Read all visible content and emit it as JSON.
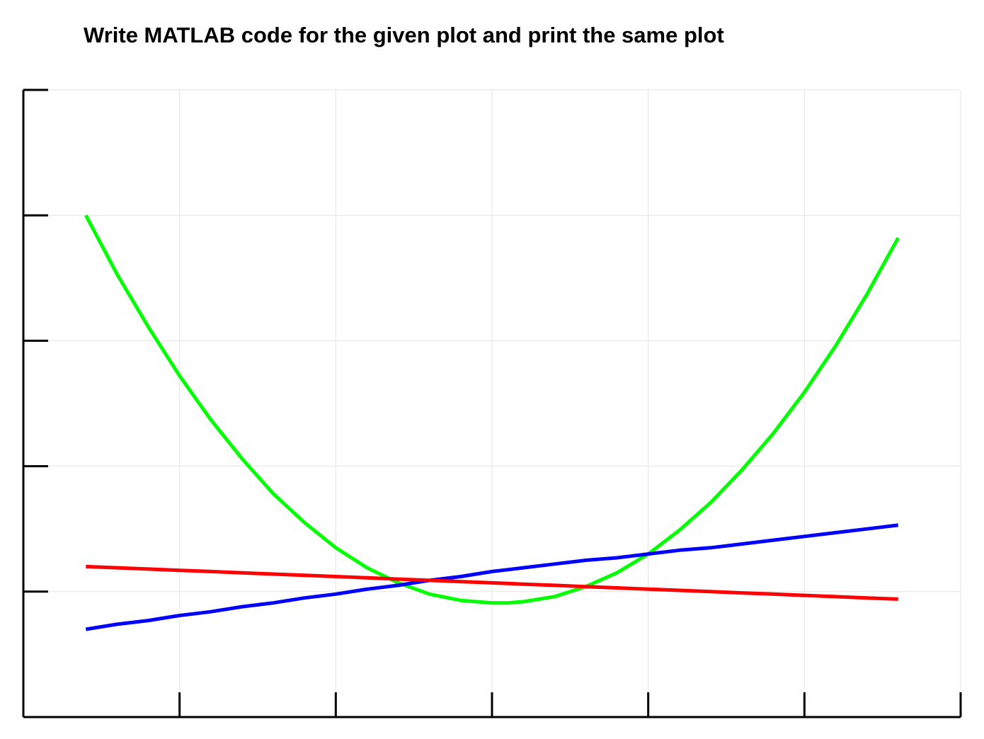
{
  "header": {
    "title": "Write MATLAB code for the given plot and print the same plot"
  },
  "chart_data": {
    "type": "line",
    "title": "",
    "xlabel": "",
    "ylabel": "",
    "xlim": [
      0,
      6
    ],
    "ylim": [
      0,
      5
    ],
    "xticks": [
      0,
      1,
      2,
      3,
      4,
      5,
      6
    ],
    "yticks": [
      0,
      1,
      2,
      3,
      4,
      5
    ],
    "grid": true,
    "tick_labels_shown": false,
    "x": [
      0.4,
      0.6,
      0.8,
      1.0,
      1.2,
      1.4,
      1.6,
      1.8,
      2.0,
      2.2,
      2.4,
      2.6,
      2.8,
      3.0,
      3.1,
      3.2,
      3.4,
      3.6,
      3.8,
      4.0,
      4.2,
      4.4,
      4.6,
      4.8,
      5.0,
      5.2,
      5.4,
      5.6
    ],
    "series": [
      {
        "color": "#00ff00",
        "values": [
          4.0,
          3.53,
          3.11,
          2.72,
          2.37,
          2.06,
          1.78,
          1.55,
          1.35,
          1.19,
          1.07,
          0.98,
          0.93,
          0.91,
          0.91,
          0.92,
          0.96,
          1.04,
          1.15,
          1.3,
          1.49,
          1.71,
          1.97,
          2.26,
          2.59,
          2.96,
          3.37,
          3.82
        ]
      },
      {
        "color": "#0000ff",
        "values": [
          0.7,
          0.74,
          0.77,
          0.81,
          0.84,
          0.88,
          0.91,
          0.95,
          0.98,
          1.02,
          1.05,
          1.09,
          1.12,
          1.16,
          1.175,
          1.19,
          1.22,
          1.25,
          1.27,
          1.3,
          1.33,
          1.35,
          1.38,
          1.41,
          1.44,
          1.47,
          1.5,
          1.53
        ]
      },
      {
        "color": "#ff0000",
        "values": [
          1.2,
          1.19,
          1.18,
          1.17,
          1.16,
          1.15,
          1.14,
          1.13,
          1.12,
          1.11,
          1.1,
          1.09,
          1.08,
          1.07,
          1.065,
          1.06,
          1.05,
          1.04,
          1.03,
          1.02,
          1.01,
          1.0,
          0.99,
          0.98,
          0.97,
          0.96,
          0.95,
          0.94
        ]
      }
    ]
  },
  "style": {
    "grid_color": "#e3e3e3",
    "axis_color": "#000000"
  }
}
